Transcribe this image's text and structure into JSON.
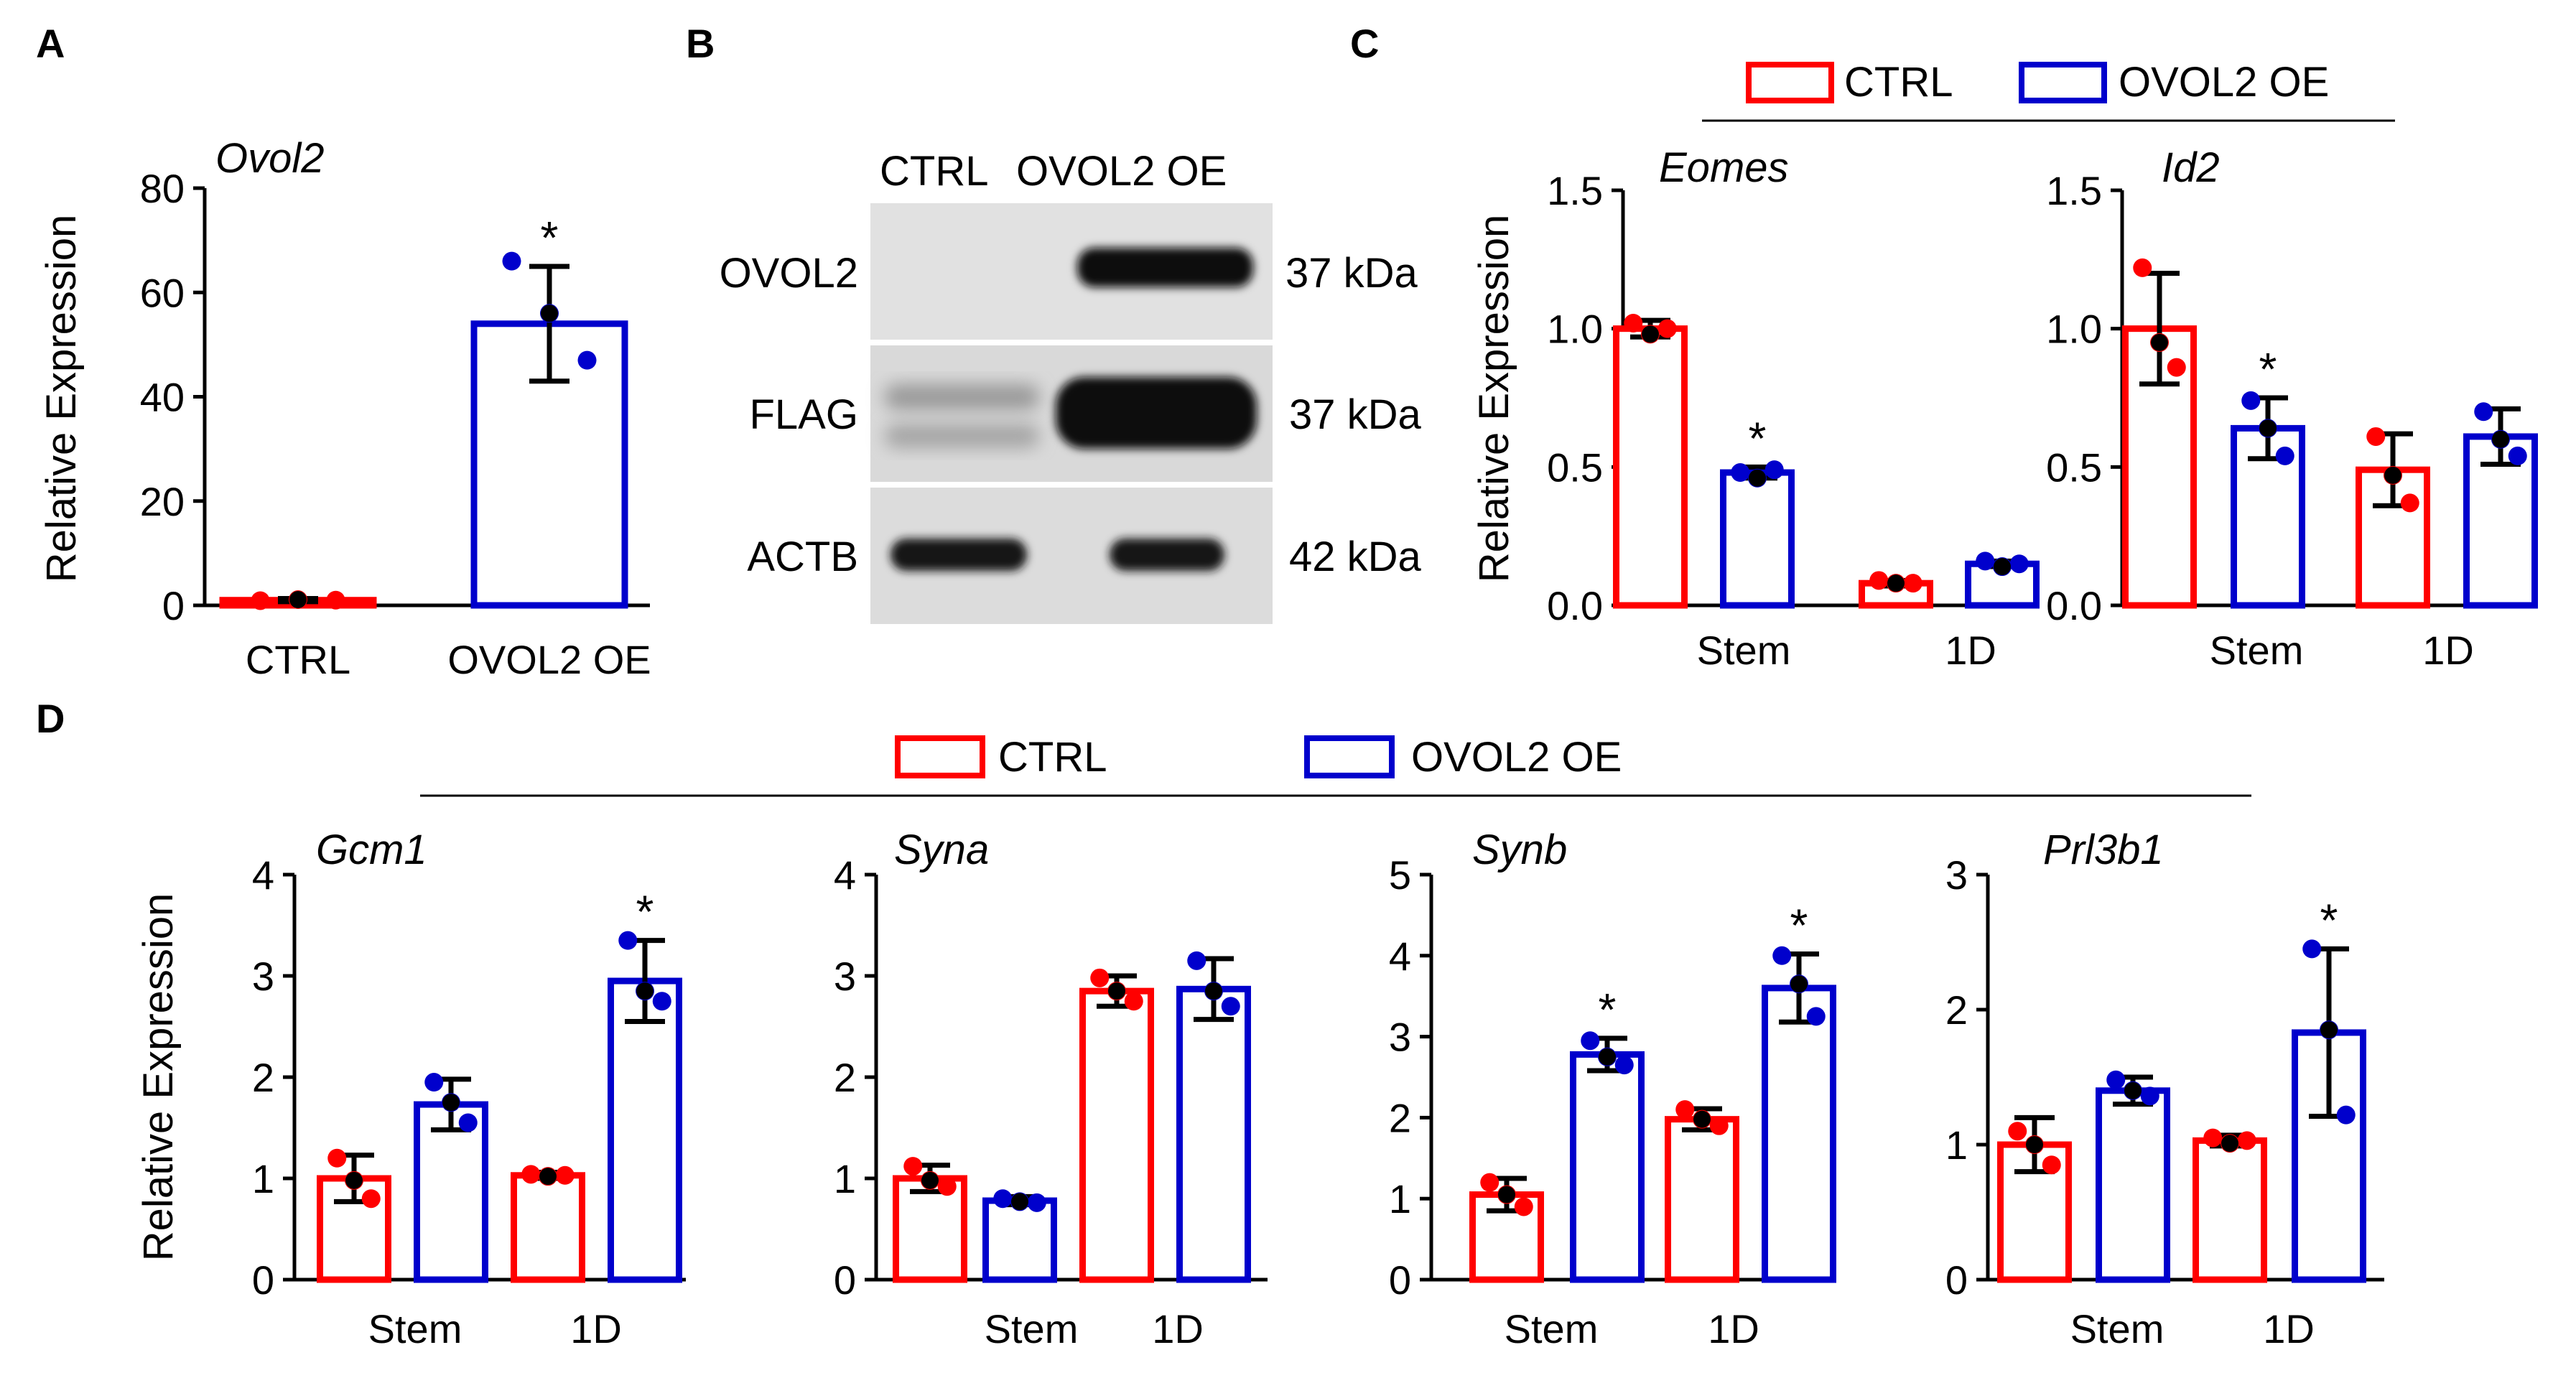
{
  "colors": {
    "ctrl": "#ff0000",
    "oe": "#0000cc",
    "black": "#000000",
    "blot_bg": "#dcdcdc"
  },
  "chart_data": [
    {
      "panel": "A",
      "type": "bar",
      "title": "Ovol2",
      "ylabel": "Relative Expression",
      "ylim": [
        0,
        80
      ],
      "yticks": [
        "0",
        "20",
        "40",
        "60",
        "80"
      ],
      "categories": [
        "CTRL",
        "OVOL2 OE"
      ],
      "bars": [
        {
          "category": "CTRL",
          "group": "CTRL",
          "value": 1.0,
          "err": 0.3,
          "points": [
            0.9,
            1.1,
            1.0
          ],
          "sig": ""
        },
        {
          "category": "OVOL2 OE",
          "group": "OVOL2 OE",
          "value": 54,
          "err": 11,
          "points": [
            66,
            56,
            47
          ],
          "sig": "*"
        }
      ]
    },
    {
      "panel": "C",
      "type": "bar",
      "title": "Eomes",
      "ylabel": "Relative Expression",
      "ylim": [
        0,
        1.5
      ],
      "yticks": [
        "0.0",
        "0.5",
        "1.0",
        "1.5"
      ],
      "categories": [
        "Stem",
        "1D"
      ],
      "series": [
        "CTRL",
        "OVOL2 OE"
      ],
      "bars": [
        {
          "category": "Stem",
          "group": "CTRL",
          "value": 1.0,
          "err": 0.03,
          "points": [
            1.02,
            0.98,
            1.0
          ],
          "sig": ""
        },
        {
          "category": "Stem",
          "group": "OVOL2 OE",
          "value": 0.48,
          "err": 0.02,
          "points": [
            0.48,
            0.46,
            0.49
          ],
          "sig": "*"
        },
        {
          "category": "1D",
          "group": "CTRL",
          "value": 0.08,
          "err": 0.01,
          "points": [
            0.09,
            0.08,
            0.08
          ],
          "sig": ""
        },
        {
          "category": "1D",
          "group": "OVOL2 OE",
          "value": 0.15,
          "err": 0.01,
          "points": [
            0.16,
            0.14,
            0.15
          ],
          "sig": ""
        }
      ]
    },
    {
      "panel": "C",
      "type": "bar",
      "title": "Id2",
      "ylabel": "",
      "ylim": [
        0,
        1.5
      ],
      "yticks": [
        "0.0",
        "0.5",
        "1.0",
        "1.5"
      ],
      "categories": [
        "Stem",
        "1D"
      ],
      "series": [
        "CTRL",
        "OVOL2 OE"
      ],
      "bars": [
        {
          "category": "Stem",
          "group": "CTRL",
          "value": 1.0,
          "err": 0.2,
          "points": [
            1.22,
            0.95,
            0.86
          ],
          "sig": ""
        },
        {
          "category": "Stem",
          "group": "OVOL2 OE",
          "value": 0.64,
          "err": 0.11,
          "points": [
            0.74,
            0.64,
            0.54
          ],
          "sig": "*"
        },
        {
          "category": "1D",
          "group": "CTRL",
          "value": 0.49,
          "err": 0.13,
          "points": [
            0.61,
            0.47,
            0.37
          ],
          "sig": ""
        },
        {
          "category": "1D",
          "group": "OVOL2 OE",
          "value": 0.61,
          "err": 0.1,
          "points": [
            0.7,
            0.6,
            0.54
          ],
          "sig": ""
        }
      ]
    },
    {
      "panel": "D",
      "type": "bar",
      "title": "Gcm1",
      "ylabel": "Relative Expression",
      "ylim": [
        0,
        4
      ],
      "yticks": [
        "0",
        "1",
        "2",
        "3",
        "4"
      ],
      "categories": [
        "Stem",
        "1D"
      ],
      "series": [
        "CTRL",
        "OVOL2 OE"
      ],
      "bars": [
        {
          "category": "Stem",
          "group": "CTRL",
          "value": 1.0,
          "err": 0.23,
          "points": [
            1.2,
            0.98,
            0.8
          ],
          "sig": ""
        },
        {
          "category": "Stem",
          "group": "OVOL2 OE",
          "value": 1.73,
          "err": 0.25,
          "points": [
            1.95,
            1.75,
            1.55
          ],
          "sig": ""
        },
        {
          "category": "1D",
          "group": "CTRL",
          "value": 1.03,
          "err": 0.03,
          "points": [
            1.04,
            1.02,
            1.03
          ],
          "sig": ""
        },
        {
          "category": "1D",
          "group": "OVOL2 OE",
          "value": 2.95,
          "err": 0.4,
          "points": [
            3.35,
            2.85,
            2.75
          ],
          "sig": "*"
        }
      ]
    },
    {
      "panel": "D",
      "type": "bar",
      "title": "Syna",
      "ylabel": "",
      "ylim": [
        0,
        4
      ],
      "yticks": [
        "0",
        "1",
        "2",
        "3",
        "4"
      ],
      "categories": [
        "Stem",
        "1D"
      ],
      "series": [
        "CTRL",
        "OVOL2 OE"
      ],
      "bars": [
        {
          "category": "Stem",
          "group": "CTRL",
          "value": 1.0,
          "err": 0.13,
          "points": [
            1.12,
            0.98,
            0.92
          ],
          "sig": ""
        },
        {
          "category": "Stem",
          "group": "OVOL2 OE",
          "value": 0.78,
          "err": 0.04,
          "points": [
            0.8,
            0.77,
            0.76
          ],
          "sig": ""
        },
        {
          "category": "1D",
          "group": "CTRL",
          "value": 2.85,
          "err": 0.15,
          "points": [
            2.98,
            2.85,
            2.75
          ],
          "sig": ""
        },
        {
          "category": "1D",
          "group": "OVOL2 OE",
          "value": 2.87,
          "err": 0.3,
          "points": [
            3.15,
            2.85,
            2.7
          ],
          "sig": ""
        }
      ]
    },
    {
      "panel": "D",
      "type": "bar",
      "title": "Synb",
      "ylabel": "",
      "ylim": [
        0,
        5
      ],
      "yticks": [
        "0",
        "1",
        "2",
        "3",
        "4",
        "5"
      ],
      "categories": [
        "Stem",
        "1D"
      ],
      "series": [
        "CTRL",
        "OVOL2 OE"
      ],
      "bars": [
        {
          "category": "Stem",
          "group": "CTRL",
          "value": 1.05,
          "err": 0.2,
          "points": [
            1.2,
            1.05,
            0.9
          ],
          "sig": ""
        },
        {
          "category": "Stem",
          "group": "OVOL2 OE",
          "value": 2.78,
          "err": 0.2,
          "points": [
            2.95,
            2.75,
            2.65
          ],
          "sig": "*"
        },
        {
          "category": "1D",
          "group": "CTRL",
          "value": 1.98,
          "err": 0.13,
          "points": [
            2.1,
            1.98,
            1.9
          ],
          "sig": ""
        },
        {
          "category": "1D",
          "group": "OVOL2 OE",
          "value": 3.6,
          "err": 0.42,
          "points": [
            4.0,
            3.65,
            3.25
          ],
          "sig": "*"
        }
      ]
    },
    {
      "panel": "D",
      "type": "bar",
      "title": "Prl3b1",
      "ylabel": "",
      "ylim": [
        0,
        3
      ],
      "yticks": [
        "0",
        "1",
        "2",
        "3"
      ],
      "categories": [
        "Stem",
        "1D"
      ],
      "series": [
        "CTRL",
        "OVOL2 OE"
      ],
      "bars": [
        {
          "category": "Stem",
          "group": "CTRL",
          "value": 1.0,
          "err": 0.2,
          "points": [
            1.1,
            1.0,
            0.85
          ],
          "sig": ""
        },
        {
          "category": "Stem",
          "group": "OVOL2 OE",
          "value": 1.4,
          "err": 0.1,
          "points": [
            1.48,
            1.4,
            1.36
          ],
          "sig": ""
        },
        {
          "category": "1D",
          "group": "CTRL",
          "value": 1.03,
          "err": 0.04,
          "points": [
            1.05,
            1.01,
            1.03
          ],
          "sig": ""
        },
        {
          "category": "1D",
          "group": "OVOL2 OE",
          "value": 1.83,
          "err": 0.62,
          "points": [
            2.45,
            1.85,
            1.22
          ],
          "sig": "*"
        }
      ]
    }
  ],
  "panel_labels": {
    "a": "A",
    "b": "B",
    "c": "C",
    "d": "D"
  },
  "legend": {
    "ctrl": "CTRL",
    "oe": "OVOL2 OE"
  },
  "western_blot": {
    "header_ctrl": "CTRL",
    "header_oe": "OVOL2 OE",
    "rows": [
      {
        "protein": "OVOL2",
        "size": "37 kDa"
      },
      {
        "protein": "FLAG",
        "size": "37 kDa"
      },
      {
        "protein": "ACTB",
        "size": "42 kDa"
      }
    ]
  }
}
